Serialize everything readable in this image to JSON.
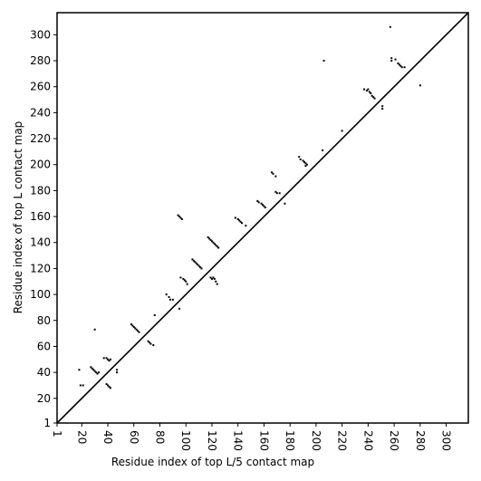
{
  "chart_data": {
    "type": "scatter",
    "xlabel": "Residue index of top L/5 contact map",
    "ylabel": "Residue index of top L contact map",
    "color": "#000000",
    "x": [
      19,
      21,
      18,
      27,
      28,
      29,
      30,
      31,
      32,
      33,
      30,
      37,
      39,
      40,
      41,
      42,
      39,
      40,
      41,
      42,
      47,
      47,
      58,
      59,
      60,
      61,
      62,
      63,
      64,
      71,
      72,
      73,
      75,
      76,
      85,
      87,
      88,
      90,
      94,
      95,
      96,
      97,
      95,
      96,
      98,
      99,
      100,
      101,
      105,
      106,
      107,
      108,
      109,
      110,
      111,
      112,
      117,
      118,
      119,
      120,
      121,
      122,
      123,
      124,
      125,
      119,
      120,
      121,
      122,
      123,
      124,
      138,
      140,
      141,
      142,
      143,
      146,
      155,
      156,
      158,
      159,
      160,
      161,
      166,
      167,
      169,
      169,
      170,
      172,
      176,
      187,
      188,
      190,
      191,
      192,
      192,
      193,
      205,
      206,
      220,
      237,
      239,
      240,
      241,
      242,
      243,
      244,
      245,
      251,
      251,
      257,
      258,
      258,
      261,
      263,
      264,
      265,
      266,
      268,
      280
    ],
    "y": [
      30,
      30,
      42,
      44,
      43,
      42,
      41,
      40,
      39,
      40,
      73,
      51,
      51,
      50,
      49,
      50,
      31,
      30,
      29,
      28,
      42,
      40,
      77,
      76,
      75,
      74,
      73,
      72,
      71,
      64,
      63,
      62,
      61,
      84,
      100,
      98,
      96,
      96,
      161,
      160,
      159,
      158,
      89,
      113,
      112,
      111,
      110,
      108,
      127,
      126,
      125,
      124,
      123,
      122,
      121,
      120,
      144,
      143,
      142,
      141,
      140,
      139,
      138,
      137,
      136,
      113,
      112,
      113,
      112,
      110,
      108,
      159,
      158,
      157,
      156,
      155,
      153,
      172,
      171,
      170,
      169,
      168,
      167,
      194,
      193,
      191,
      179,
      178,
      178,
      170,
      206,
      204,
      203,
      202,
      201,
      199,
      200,
      211,
      280,
      226,
      258,
      257,
      258,
      256,
      255,
      253,
      252,
      251,
      245,
      243,
      306,
      282,
      280,
      281,
      278,
      277,
      276,
      275,
      275,
      261
    ],
    "xlim": [
      1,
      317
    ],
    "ylim": [
      1,
      317
    ],
    "xticks": [
      1,
      20,
      40,
      60,
      80,
      100,
      120,
      140,
      160,
      180,
      200,
      220,
      240,
      260,
      280,
      300
    ],
    "yticks": [
      1,
      20,
      40,
      60,
      80,
      100,
      120,
      140,
      160,
      180,
      200,
      220,
      240,
      260,
      280,
      300
    ]
  }
}
